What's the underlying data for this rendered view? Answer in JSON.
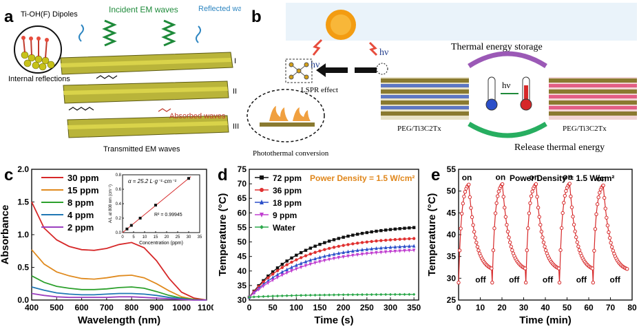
{
  "panel_a": {
    "letter": "a",
    "dipoles": "Ti-OH(F) Dipoles",
    "incident": "Incident EM waves",
    "reflected": "Reflected waves",
    "internal": "Internal reflections",
    "absorbed": "Absorbed waves",
    "transmitted": "Transmitted EM waves",
    "layers": [
      "I",
      "II",
      "III"
    ]
  },
  "panel_b": {
    "letter": "b",
    "hv": "hν",
    "lspr": "LSPR effect",
    "photothermal": "Photothermal conversion",
    "storage": "Thermal energy storage",
    "release": "Release thermal energy",
    "composite_left": "PEG/Ti3C2Tx",
    "composite_right": "PEG/Ti3C2Tx"
  },
  "colors": {
    "c_series": [
      "#d62728",
      "#e08a1e",
      "#2ca02c",
      "#1f77b4",
      "#9b3fbf"
    ],
    "d_series": [
      "#111111",
      "#e03030",
      "#2b4fc9",
      "#c03fd0",
      "#2ca84b"
    ],
    "e_line": "#d62728",
    "power": "#e0861a"
  },
  "chart_data": [
    {
      "id": "c",
      "letter": "c",
      "type": "line",
      "xlabel": "Wavelength (nm)",
      "ylabel": "Absorbance",
      "xlim": [
        400,
        1100
      ],
      "ylim": [
        0,
        2
      ],
      "xticks": [
        400,
        500,
        600,
        700,
        800,
        900,
        1000,
        1100
      ],
      "yticks": [
        0.0,
        0.5,
        1.0,
        1.5,
        2.0
      ],
      "series": [
        {
          "name": "30 ppm",
          "points": [
            [
              400,
              1.5
            ],
            [
              450,
              1.1
            ],
            [
              500,
              0.92
            ],
            [
              550,
              0.82
            ],
            [
              600,
              0.77
            ],
            [
              650,
              0.76
            ],
            [
              700,
              0.79
            ],
            [
              750,
              0.85
            ],
            [
              800,
              0.88
            ],
            [
              850,
              0.8
            ],
            [
              900,
              0.6
            ],
            [
              950,
              0.33
            ],
            [
              1000,
              0.12
            ],
            [
              1050,
              0.03
            ],
            [
              1100,
              0.0
            ]
          ]
        },
        {
          "name": "15 ppm",
          "points": [
            [
              400,
              0.77
            ],
            [
              450,
              0.55
            ],
            [
              500,
              0.43
            ],
            [
              550,
              0.37
            ],
            [
              600,
              0.33
            ],
            [
              650,
              0.32
            ],
            [
              700,
              0.34
            ],
            [
              750,
              0.37
            ],
            [
              800,
              0.38
            ],
            [
              850,
              0.34
            ],
            [
              900,
              0.25
            ],
            [
              950,
              0.14
            ],
            [
              1000,
              0.05
            ],
            [
              1050,
              0.01
            ],
            [
              1100,
              0.0
            ]
          ]
        },
        {
          "name": "8 ppm",
          "points": [
            [
              400,
              0.37
            ],
            [
              450,
              0.27
            ],
            [
              500,
              0.21
            ],
            [
              550,
              0.18
            ],
            [
              600,
              0.16
            ],
            [
              650,
              0.16
            ],
            [
              700,
              0.17
            ],
            [
              750,
              0.19
            ],
            [
              800,
              0.2
            ],
            [
              850,
              0.18
            ],
            [
              900,
              0.13
            ],
            [
              950,
              0.07
            ],
            [
              1000,
              0.03
            ],
            [
              1050,
              0.01
            ],
            [
              1100,
              0.0
            ]
          ]
        },
        {
          "name": "4 ppm",
          "points": [
            [
              400,
              0.2
            ],
            [
              450,
              0.15
            ],
            [
              500,
              0.11
            ],
            [
              550,
              0.09
            ],
            [
              600,
              0.08
            ],
            [
              650,
              0.08
            ],
            [
              700,
              0.09
            ],
            [
              750,
              0.1
            ],
            [
              800,
              0.1
            ],
            [
              850,
              0.09
            ],
            [
              900,
              0.07
            ],
            [
              950,
              0.04
            ],
            [
              1000,
              0.02
            ],
            [
              1050,
              0.0
            ],
            [
              1100,
              0.0
            ]
          ]
        },
        {
          "name": "2 ppm",
          "points": [
            [
              400,
              0.1
            ],
            [
              450,
              0.07
            ],
            [
              500,
              0.05
            ],
            [
              550,
              0.04
            ],
            [
              600,
              0.04
            ],
            [
              650,
              0.04
            ],
            [
              700,
              0.04
            ],
            [
              750,
              0.05
            ],
            [
              800,
              0.05
            ],
            [
              850,
              0.04
            ],
            [
              900,
              0.03
            ],
            [
              950,
              0.02
            ],
            [
              1000,
              0.01
            ],
            [
              1050,
              0.0
            ],
            [
              1100,
              0.0
            ]
          ]
        }
      ],
      "inset": {
        "alpha": "α = 25.2 L·g⁻¹·cm⁻¹",
        "r2": "R² = 0.99945",
        "xlabel": "Concentration (ppm)",
        "ylabel": "A/L at 808 nm (cm⁻¹)",
        "xlim": [
          0,
          35
        ],
        "ylim": [
          0,
          0.8
        ],
        "xticks": [
          0,
          5,
          10,
          15,
          20,
          25,
          30,
          35
        ],
        "yticks": [
          0.0,
          0.2,
          0.4,
          0.6,
          0.8
        ],
        "points": [
          [
            2,
            0.05
          ],
          [
            4,
            0.1
          ],
          [
            8,
            0.2
          ],
          [
            15,
            0.38
          ],
          [
            30,
            0.75
          ]
        ]
      }
    },
    {
      "id": "d",
      "letter": "d",
      "type": "line",
      "annotation": "Power Density = 1.5 W/cm²",
      "xlabel": "Time (s)",
      "ylabel": "Temperature (°C)",
      "xlim": [
        0,
        360
      ],
      "ylim": [
        30,
        75
      ],
      "xticks": [
        0,
        50,
        100,
        150,
        200,
        250,
        300,
        350
      ],
      "yticks": [
        30,
        35,
        40,
        45,
        50,
        55,
        60,
        65,
        70,
        75
      ],
      "series": [
        {
          "name": "72 ppm",
          "marker": "square",
          "plateau": 55.0,
          "tau": 118
        },
        {
          "name": "36 ppm",
          "marker": "circle",
          "plateau": 51.2,
          "tau": 105
        },
        {
          "name": "18 ppm",
          "marker": "triangle-up",
          "plateau": 48.6,
          "tau": 110
        },
        {
          "name": "9 ppm",
          "marker": "triangle-down",
          "plateau": 47.2,
          "tau": 118
        },
        {
          "name": "Water",
          "marker": "diamond",
          "plateau": 32.0,
          "tau": 120
        }
      ]
    },
    {
      "id": "e",
      "letter": "e",
      "type": "line",
      "annotation": "Power Density = 1.5 W/cm²",
      "xlabel": "Time (min)",
      "ylabel": "Temperature (°C)",
      "xlim": [
        0,
        80
      ],
      "ylim": [
        25,
        55
      ],
      "xticks": [
        0,
        10,
        20,
        30,
        40,
        50,
        60,
        70,
        80
      ],
      "yticks": [
        25,
        30,
        35,
        40,
        45,
        50,
        55
      ],
      "cycles": [
        {
          "start": 0,
          "peak": 51.5,
          "on_label": "on",
          "off_label": "off"
        },
        {
          "start": 15.5,
          "peak": 51.6,
          "on_label": "on",
          "off_label": "off"
        },
        {
          "start": 31,
          "peak": 51.6,
          "on_label": "on",
          "off_label": "off"
        },
        {
          "start": 46.5,
          "peak": 51.7,
          "on_label": "on",
          "off_label": "off"
        },
        {
          "start": 62,
          "peak": 51.3,
          "on_label": "on",
          "off_label": "off"
        }
      ],
      "cycle_on_duration": 4.7,
      "cycle_total": 15.5,
      "base_temp": 31.5
    }
  ]
}
